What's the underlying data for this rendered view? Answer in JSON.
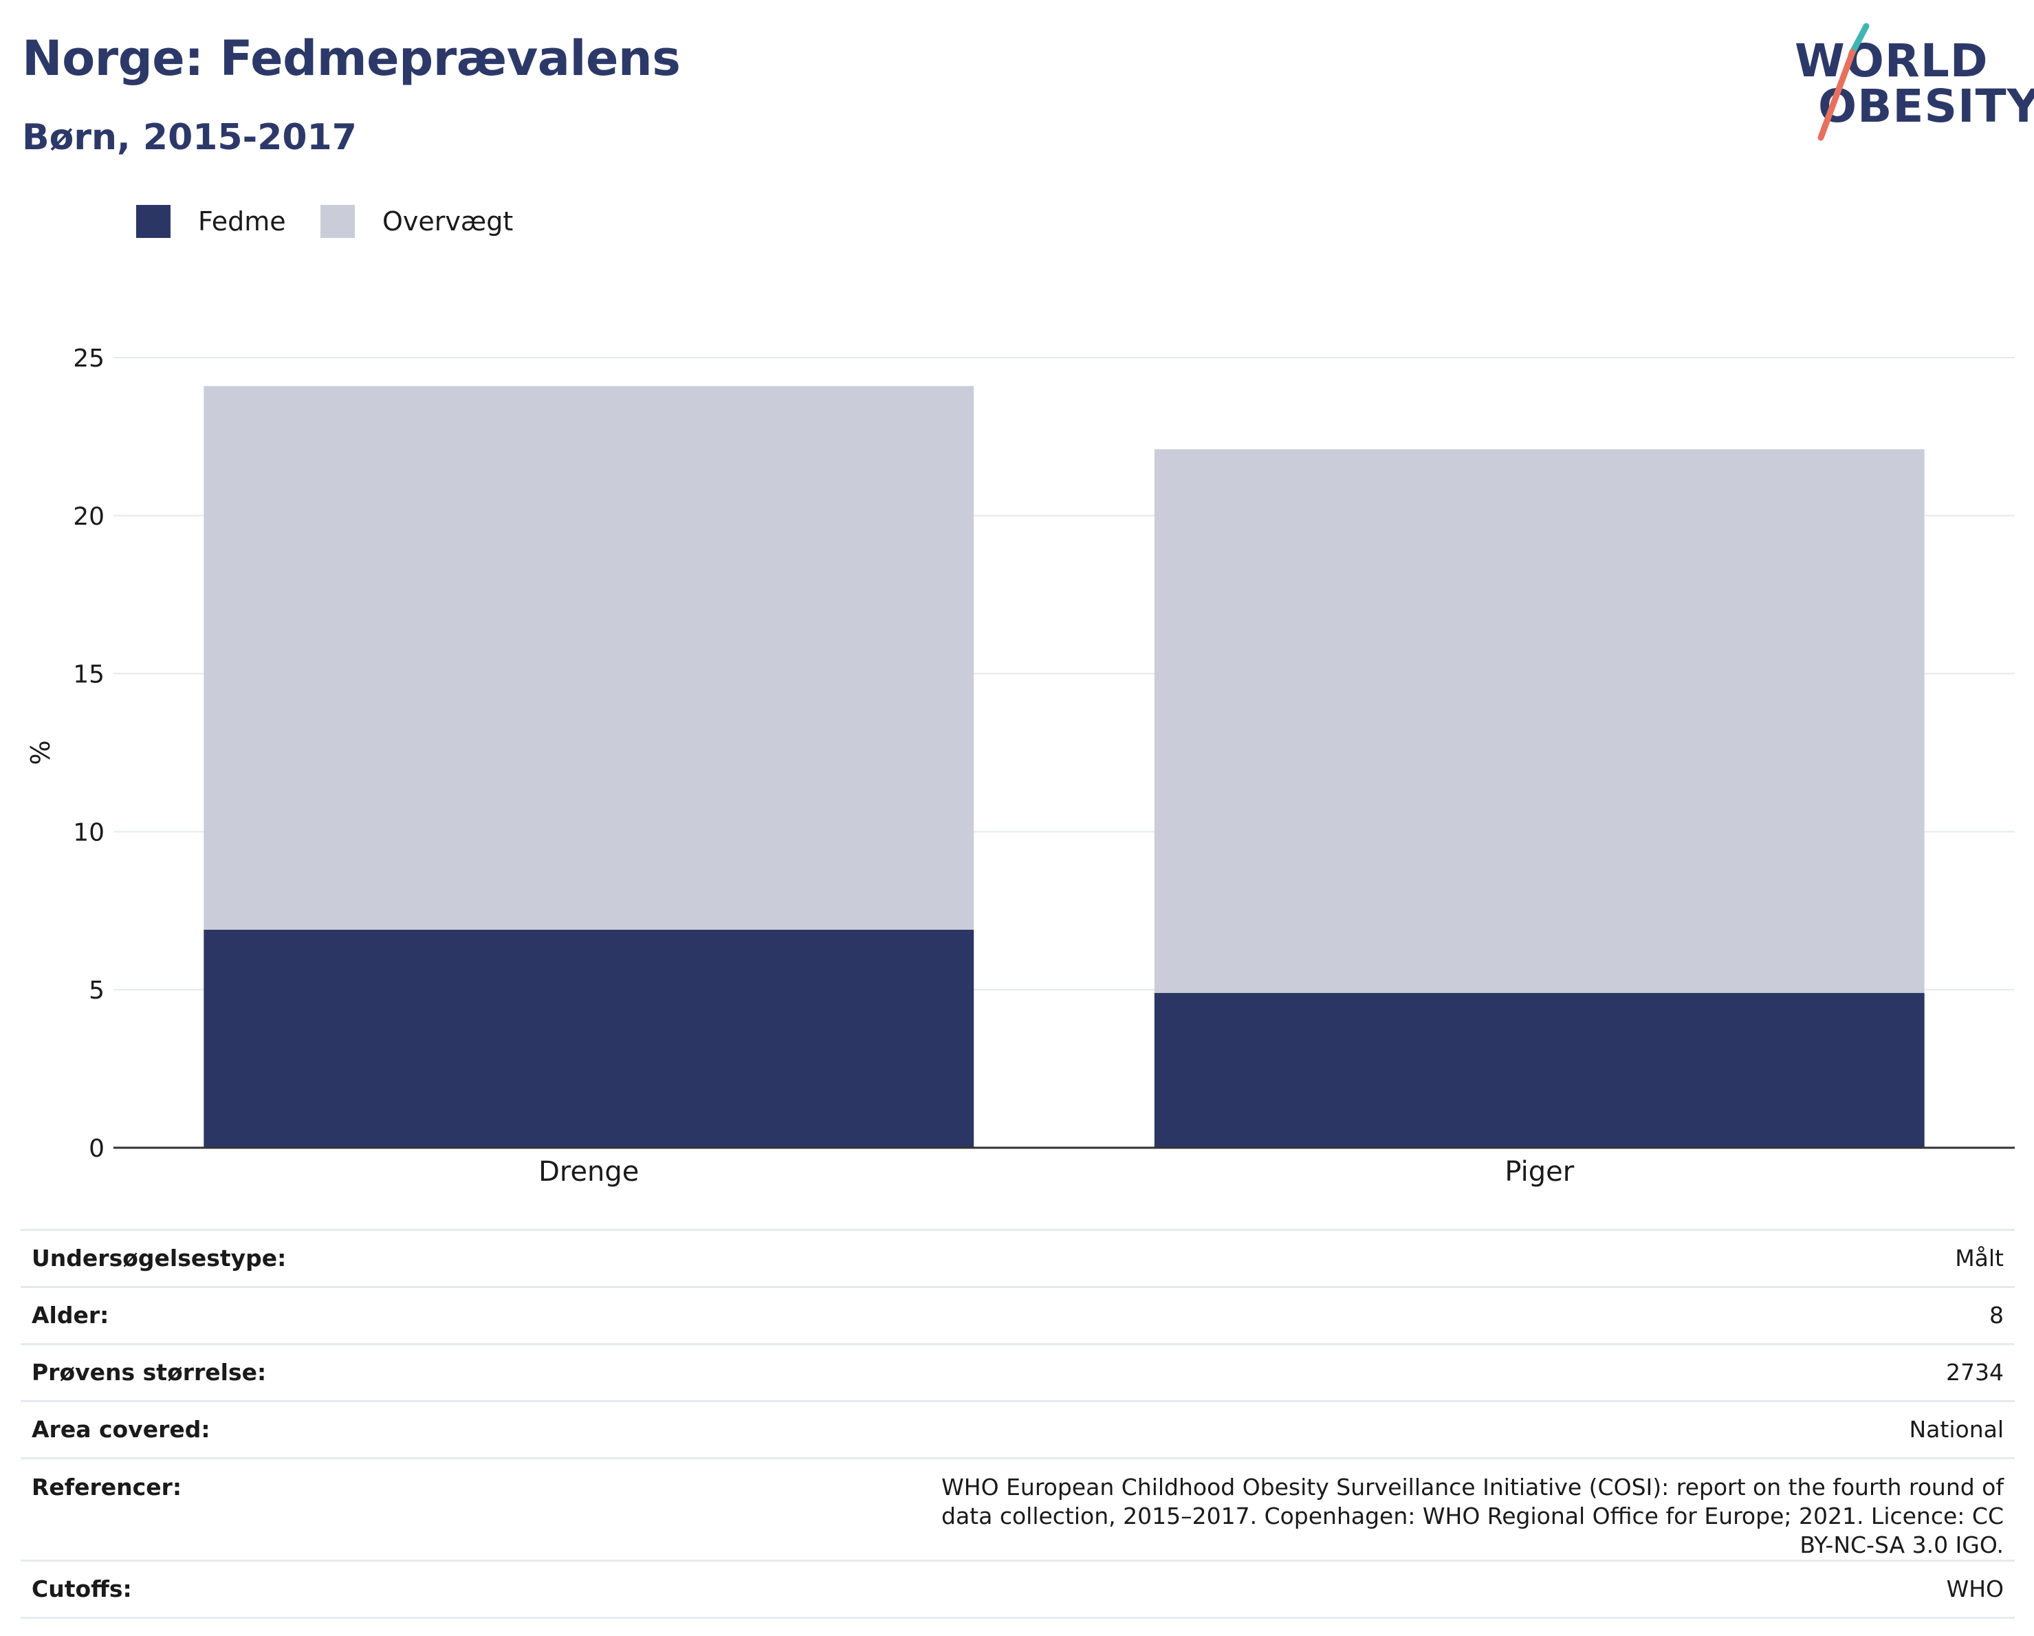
{
  "header": {
    "title": "Norge: Fedmeprævalens",
    "subtitle": "Børn, 2015-2017"
  },
  "logo": {
    "line1": "WORLD",
    "line2": "OBESITY",
    "accent_teal": "#3fb6b2",
    "accent_coral": "#e8705f",
    "text_color": "#2c3968"
  },
  "legend": {
    "items": [
      {
        "label": "Fedme",
        "color": "#2b3664"
      },
      {
        "label": "Overvægt",
        "color": "#cacdd9"
      }
    ]
  },
  "chart_data": {
    "type": "bar",
    "stacked": true,
    "categories": [
      "Drenge",
      "Piger"
    ],
    "series": [
      {
        "name": "Fedme",
        "values": [
          6.9,
          4.9
        ],
        "color": "#2b3664"
      },
      {
        "name": "Overvægt",
        "values": [
          17.2,
          17.2
        ],
        "color": "#cacdd9"
      }
    ],
    "ylabel": "%",
    "ylim": [
      0,
      25
    ],
    "yticks": [
      0,
      5,
      10,
      15,
      20,
      25
    ],
    "grid": true,
    "legend_position": "top-left"
  },
  "info_table": [
    {
      "label": "Undersøgelsestype:",
      "value": "Målt"
    },
    {
      "label": "Alder:",
      "value": "8"
    },
    {
      "label": "Prøvens størrelse:",
      "value": "2734"
    },
    {
      "label": "Area covered:",
      "value": "National"
    },
    {
      "label": "Referencer:",
      "value": "WHO European Childhood Obesity Surveillance Initiative (COSI): report on the fourth round of data collection, 2015–2017. Copenhagen: WHO Regional Office for Europe; 2021. Licence: CC BY-NC-SA 3.0 IGO."
    },
    {
      "label": "Cutoffs:",
      "value": "WHO"
    }
  ]
}
